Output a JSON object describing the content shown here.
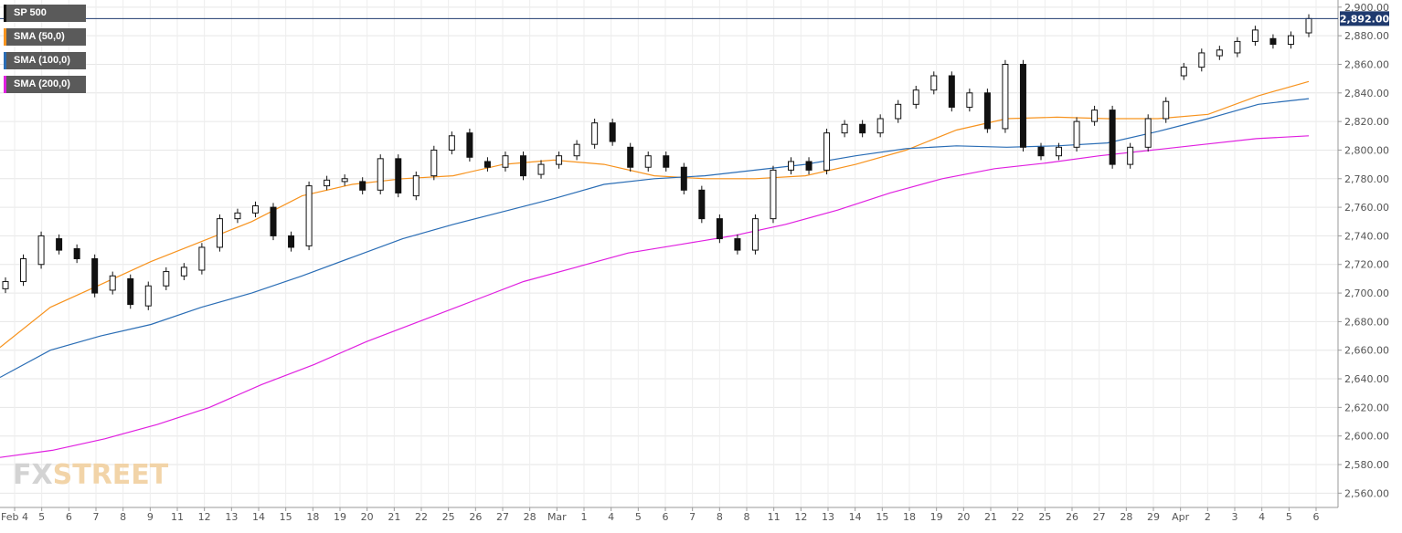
{
  "legend": [
    {
      "label": "SP 500",
      "color": "#111111"
    },
    {
      "label": "SMA (50,0)",
      "color": "#f7931e"
    },
    {
      "label": "SMA (100,0)",
      "color": "#2a6db5"
    },
    {
      "label": "SMA (200,0)",
      "color": "#e020e0"
    }
  ],
  "logo": {
    "part1": "FX",
    "part2": "STREET"
  },
  "current_price_label": "2,892.00",
  "chart_data": {
    "type": "candlestick",
    "title": "",
    "ylim": [
      2550,
      2905
    ],
    "y_ticks": [
      2560,
      2580,
      2600,
      2620,
      2640,
      2660,
      2680,
      2700,
      2720,
      2740,
      2760,
      2780,
      2800,
      2820,
      2840,
      2860,
      2880,
      2900
    ],
    "y_tick_labels": [
      "2,560.00",
      "2,580.00",
      "2,600.00",
      "2,620.00",
      "2,640.00",
      "2,660.00",
      "2,680.00",
      "2,700.00",
      "2,720.00",
      "2,740.00",
      "2,760.00",
      "2,780.00",
      "2,800.00",
      "2,820.00",
      "2,840.00",
      "2,860.00",
      "2,880.00",
      "2,900.00"
    ],
    "x_labels": [
      "Feb 4",
      "5",
      "6",
      "7",
      "8",
      "9",
      "11",
      "12",
      "13",
      "14",
      "15",
      "18",
      "19",
      "20",
      "21",
      "22",
      "25",
      "26",
      "27",
      "28",
      "Mar",
      "1",
      "4",
      "5",
      "6",
      "7",
      "8",
      "8",
      "11",
      "12",
      "13",
      "14",
      "15",
      "18",
      "19",
      "20",
      "21",
      "22",
      "25",
      "26",
      "27",
      "28",
      "29",
      "Apr",
      "2",
      "3",
      "4",
      "5",
      "6"
    ],
    "current_price": 2892.0,
    "grid": true,
    "sessions": [
      {
        "o": 2703,
        "c": 2708
      },
      {
        "o": 2708,
        "c": 2724
      },
      {
        "o": 2720,
        "c": 2740
      },
      {
        "o": 2738,
        "c": 2730
      },
      {
        "o": 2731,
        "c": 2724
      },
      {
        "o": 2724,
        "c": 2700
      },
      {
        "o": 2702,
        "c": 2712
      },
      {
        "o": 2710,
        "c": 2692
      },
      {
        "o": 2691,
        "c": 2705
      },
      {
        "o": 2705,
        "c": 2715
      },
      {
        "o": 2712,
        "c": 2718
      },
      {
        "o": 2716,
        "c": 2732
      },
      {
        "o": 2732,
        "c": 2752
      },
      {
        "o": 2752,
        "c": 2756
      },
      {
        "o": 2756,
        "c": 2761
      },
      {
        "o": 2760,
        "c": 2740
      },
      {
        "o": 2740,
        "c": 2732
      },
      {
        "o": 2733,
        "c": 2775
      },
      {
        "o": 2775,
        "c": 2779
      },
      {
        "o": 2778,
        "c": 2780
      },
      {
        "o": 2778,
        "c": 2772
      },
      {
        "o": 2772,
        "c": 2794
      },
      {
        "o": 2794,
        "c": 2770
      },
      {
        "o": 2768,
        "c": 2782
      },
      {
        "o": 2782,
        "c": 2800
      },
      {
        "o": 2800,
        "c": 2810
      },
      {
        "o": 2812,
        "c": 2795
      },
      {
        "o": 2792,
        "c": 2788
      },
      {
        "o": 2788,
        "c": 2796
      },
      {
        "o": 2796,
        "c": 2782
      },
      {
        "o": 2783,
        "c": 2790
      },
      {
        "o": 2790,
        "c": 2796
      },
      {
        "o": 2796,
        "c": 2804
      },
      {
        "o": 2804,
        "c": 2819
      },
      {
        "o": 2819,
        "c": 2806
      },
      {
        "o": 2802,
        "c": 2788
      },
      {
        "o": 2788,
        "c": 2796
      },
      {
        "o": 2796,
        "c": 2788
      },
      {
        "o": 2788,
        "c": 2772
      },
      {
        "o": 2772,
        "c": 2752
      },
      {
        "o": 2752,
        "c": 2738
      },
      {
        "o": 2738,
        "c": 2730
      },
      {
        "o": 2730,
        "c": 2752
      },
      {
        "o": 2752,
        "c": 2786
      },
      {
        "o": 2786,
        "c": 2792
      },
      {
        "o": 2792,
        "c": 2786
      },
      {
        "o": 2786,
        "c": 2812
      },
      {
        "o": 2812,
        "c": 2818
      },
      {
        "o": 2818,
        "c": 2812
      },
      {
        "o": 2812,
        "c": 2822
      },
      {
        "o": 2822,
        "c": 2832
      },
      {
        "o": 2832,
        "c": 2842
      },
      {
        "o": 2842,
        "c": 2852
      },
      {
        "o": 2852,
        "c": 2830
      },
      {
        "o": 2830,
        "c": 2840
      },
      {
        "o": 2840,
        "c": 2815
      },
      {
        "o": 2815,
        "c": 2860
      },
      {
        "o": 2860,
        "c": 2802
      },
      {
        "o": 2802,
        "c": 2796
      },
      {
        "o": 2796,
        "c": 2802
      },
      {
        "o": 2802,
        "c": 2820
      },
      {
        "o": 2820,
        "c": 2828
      },
      {
        "o": 2828,
        "c": 2790
      },
      {
        "o": 2790,
        "c": 2802
      },
      {
        "o": 2802,
        "c": 2822
      },
      {
        "o": 2822,
        "c": 2834
      },
      {
        "o": 2852,
        "c": 2858
      },
      {
        "o": 2858,
        "c": 2868
      },
      {
        "o": 2866,
        "c": 2870
      },
      {
        "o": 2868,
        "c": 2876
      },
      {
        "o": 2876,
        "c": 2884
      },
      {
        "o": 2878,
        "c": 2874
      },
      {
        "o": 2874,
        "c": 2880
      },
      {
        "o": 2882,
        "c": 2892
      }
    ],
    "series": [
      {
        "name": "SMA (50,0)",
        "color": "#f7931e",
        "values": [
          2662,
          2690,
          2706,
          2722,
          2736,
          2750,
          2768,
          2776,
          2780,
          2782,
          2790,
          2793,
          2790,
          2782,
          2780,
          2780,
          2782,
          2790,
          2800,
          2814,
          2822,
          2823,
          2822,
          2822,
          2825,
          2838,
          2848
        ]
      },
      {
        "name": "SMA (100,0)",
        "color": "#2a6db5",
        "values": [
          2641,
          2660,
          2670,
          2678,
          2690,
          2700,
          2712,
          2725,
          2738,
          2748,
          2757,
          2766,
          2776,
          2780,
          2782,
          2786,
          2790,
          2796,
          2801,
          2803,
          2802,
          2803,
          2805,
          2813,
          2822,
          2832,
          2836
        ]
      },
      {
        "name": "SMA (200,0)",
        "color": "#e020e0",
        "values": [
          2585,
          2590,
          2598,
          2608,
          2620,
          2636,
          2650,
          2666,
          2680,
          2694,
          2708,
          2718,
          2728,
          2734,
          2740,
          2748,
          2758,
          2770,
          2780,
          2787,
          2791,
          2796,
          2800,
          2804,
          2808,
          2810
        ]
      }
    ]
  }
}
